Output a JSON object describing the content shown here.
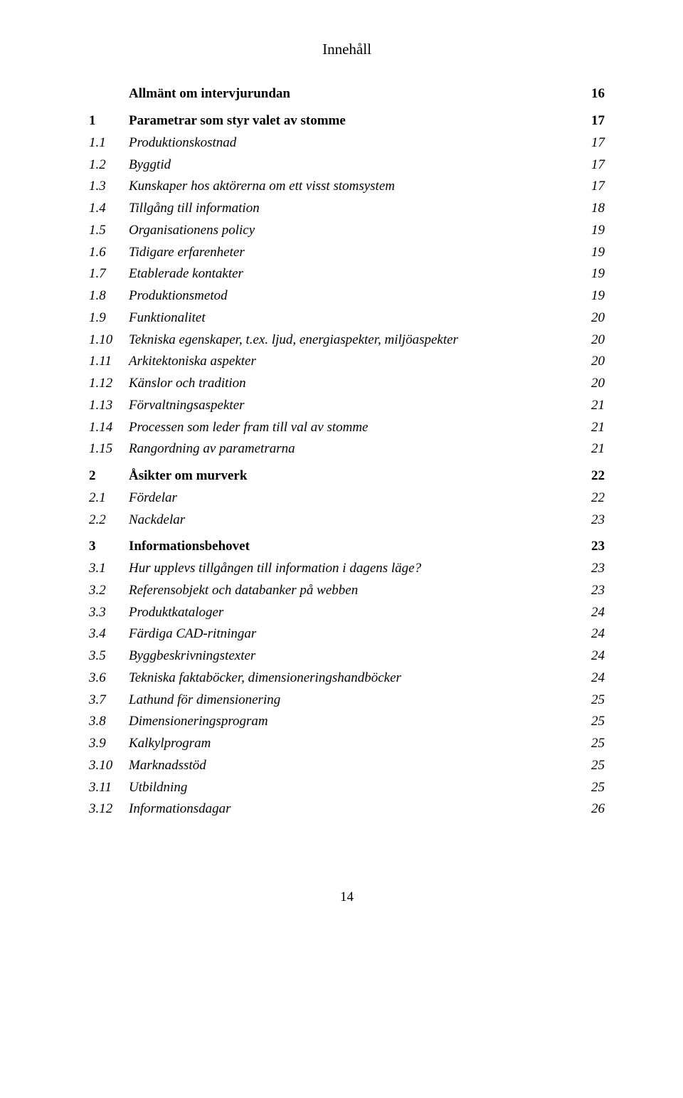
{
  "title": "Innehåll",
  "page_number": "14",
  "entries": [
    {
      "num": "",
      "label": "Allmänt om intervjurundan",
      "page": "16",
      "bold": true,
      "italic": false
    },
    {
      "num": "1",
      "label": "Parametrar som styr valet av stomme",
      "page": "17",
      "bold": true,
      "italic": false
    },
    {
      "num": "1.1",
      "label": "Produktionskostnad",
      "page": "17",
      "bold": false,
      "italic": true
    },
    {
      "num": "1.2",
      "label": "Byggtid",
      "page": "17",
      "bold": false,
      "italic": true
    },
    {
      "num": "1.3",
      "label": "Kunskaper hos aktörerna om ett visst stomsystem",
      "page": "17",
      "bold": false,
      "italic": true
    },
    {
      "num": "1.4",
      "label": "Tillgång till information",
      "page": "18",
      "bold": false,
      "italic": true
    },
    {
      "num": "1.5",
      "label": "Organisationens policy",
      "page": "19",
      "bold": false,
      "italic": true
    },
    {
      "num": "1.6",
      "label": "Tidigare erfarenheter",
      "page": "19",
      "bold": false,
      "italic": true
    },
    {
      "num": "1.7",
      "label": "Etablerade kontakter",
      "page": "19",
      "bold": false,
      "italic": true
    },
    {
      "num": "1.8",
      "label": "Produktionsmetod",
      "page": "19",
      "bold": false,
      "italic": true
    },
    {
      "num": "1.9",
      "label": "Funktionalitet",
      "page": "20",
      "bold": false,
      "italic": true
    },
    {
      "num": "1.10",
      "label": "Tekniska egenskaper, t.ex. ljud, energiaspekter, miljöaspekter",
      "page": "20",
      "bold": false,
      "italic": true
    },
    {
      "num": "1.11",
      "label": "Arkitektoniska aspekter",
      "page": "20",
      "bold": false,
      "italic": true
    },
    {
      "num": "1.12",
      "label": "Känslor och tradition",
      "page": "20",
      "bold": false,
      "italic": true
    },
    {
      "num": "1.13",
      "label": "Förvaltningsaspekter",
      "page": "21",
      "bold": false,
      "italic": true
    },
    {
      "num": "1.14",
      "label": "Processen som leder fram till val av stomme",
      "page": "21",
      "bold": false,
      "italic": true
    },
    {
      "num": "1.15",
      "label": "Rangordning av parametrarna",
      "page": "21",
      "bold": false,
      "italic": true
    },
    {
      "num": "2",
      "label": "Åsikter om murverk",
      "page": "22",
      "bold": true,
      "italic": false
    },
    {
      "num": "2.1",
      "label": "Fördelar",
      "page": "22",
      "bold": false,
      "italic": true
    },
    {
      "num": "2.2",
      "label": "Nackdelar",
      "page": "23",
      "bold": false,
      "italic": true
    },
    {
      "num": "3",
      "label": "Informationsbehovet",
      "page": "23",
      "bold": true,
      "italic": false
    },
    {
      "num": "3.1",
      "label": "Hur upplevs tillgången till information i dagens läge?",
      "page": "23",
      "bold": false,
      "italic": true
    },
    {
      "num": "3.2",
      "label": "Referensobjekt och databanker på webben",
      "page": "23",
      "bold": false,
      "italic": true
    },
    {
      "num": "3.3",
      "label": "Produktkataloger",
      "page": "24",
      "bold": false,
      "italic": true
    },
    {
      "num": "3.4",
      "label": "Färdiga CAD-ritningar",
      "page": "24",
      "bold": false,
      "italic": true
    },
    {
      "num": "3.5",
      "label": "Byggbeskrivningstexter",
      "page": "24",
      "bold": false,
      "italic": true
    },
    {
      "num": "3.6",
      "label": "Tekniska faktaböcker, dimensioneringshandböcker",
      "page": "24",
      "bold": false,
      "italic": true
    },
    {
      "num": "3.7",
      "label": "Lathund för dimensionering",
      "page": "25",
      "bold": false,
      "italic": true
    },
    {
      "num": "3.8",
      "label": "Dimensioneringsprogram",
      "page": "25",
      "bold": false,
      "italic": true
    },
    {
      "num": "3.9",
      "label": "Kalkylprogram",
      "page": "25",
      "bold": false,
      "italic": true
    },
    {
      "num": "3.10",
      "label": "Marknadsstöd",
      "page": "25",
      "bold": false,
      "italic": true
    },
    {
      "num": "3.11",
      "label": "Utbildning",
      "page": "25",
      "bold": false,
      "italic": true
    },
    {
      "num": "3.12",
      "label": "Informationsdagar",
      "page": "26",
      "bold": false,
      "italic": true
    }
  ]
}
